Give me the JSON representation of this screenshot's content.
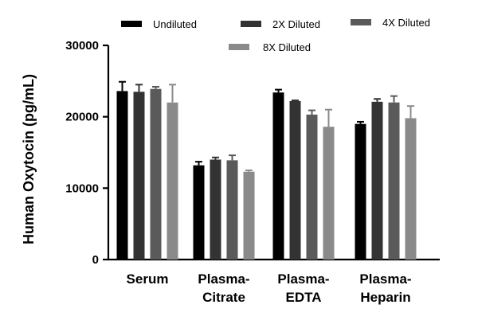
{
  "chart_data": {
    "type": "bar",
    "title": "",
    "xlabel": "",
    "ylabel": "Human Oxytocin (pg/mL)",
    "ylim": [
      0,
      30000
    ],
    "yticks": [
      0,
      10000,
      20000,
      30000
    ],
    "ytick_labels": [
      "0",
      "10000",
      "20000",
      "30000"
    ],
    "categories": [
      [
        "Serum"
      ],
      [
        "Plasma-",
        "Citrate"
      ],
      [
        "Plasma-",
        "EDTA"
      ],
      [
        "Plasma-",
        "Heparin"
      ]
    ],
    "series": [
      {
        "name": "Undiluted",
        "color": "#000000",
        "values": [
          23600,
          13200,
          23400,
          19000
        ],
        "errors": [
          1300,
          500,
          400,
          300
        ]
      },
      {
        "name": "2X Diluted",
        "color": "#333333",
        "values": [
          23500,
          14000,
          22200,
          22100
        ],
        "errors": [
          1000,
          300,
          100,
          400
        ]
      },
      {
        "name": "4X Diluted",
        "color": "#5a5a5a",
        "values": [
          23900,
          13900,
          20300,
          22000
        ],
        "errors": [
          300,
          700,
          600,
          900
        ]
      },
      {
        "name": "8X Diluted",
        "color": "#8a8a8a",
        "values": [
          22000,
          12300,
          18600,
          19800
        ],
        "errors": [
          2500,
          200,
          2400,
          1700
        ]
      }
    ],
    "legend_position": "top"
  }
}
